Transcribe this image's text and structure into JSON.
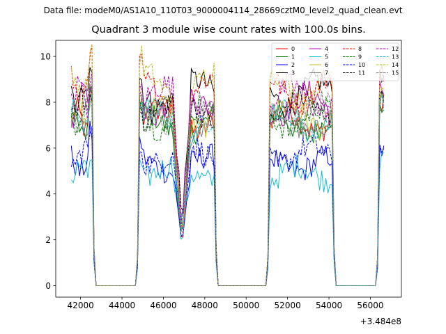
{
  "suptitle": "Data file: modeM0/AS1A10_110T03_9000004114_28669cztM0_level2_quad_clean.evt",
  "chart_data": {
    "type": "line",
    "title": "Quadrant 3 module wise count rates with 100.0s bins.",
    "xlabel": "",
    "ylabel": "",
    "x_offset_label": "+3.484e8",
    "x_offset": 348400000,
    "xlim": [
      40800,
      57500
    ],
    "ylim": [
      -0.5,
      10.7
    ],
    "x_ticks": [
      42000,
      44000,
      46000,
      48000,
      50000,
      52000,
      54000,
      56000
    ],
    "x_tick_labels": [
      "42000",
      "44000",
      "46000",
      "48000",
      "50000",
      "52000",
      "54000",
      "56000"
    ],
    "y_ticks": [
      0,
      2,
      4,
      6,
      8,
      10
    ],
    "y_tick_labels": [
      "0",
      "2",
      "4",
      "6",
      "8",
      "10"
    ],
    "legend_position": "top-right",
    "legend_columns": 4,
    "segments": [
      {
        "start": 41550,
        "end": 42550
      },
      {
        "start": 44850,
        "end": 48450
      },
      {
        "start": 51150,
        "end": 54150
      },
      {
        "start": 56450,
        "end": 56650
      }
    ],
    "zero_gaps": [
      [
        42750,
        44650
      ],
      [
        48650,
        50950
      ],
      [
        54350,
        56250
      ]
    ],
    "dip_center": 46900,
    "series": [
      {
        "name": "0",
        "color": "#ff0000",
        "dash": "solid",
        "level": 7.2
      },
      {
        "name": "1",
        "color": "#008000",
        "dash": "solid",
        "level": 7.0
      },
      {
        "name": "2",
        "color": "#0000ff",
        "dash": "solid",
        "level": 5.3
      },
      {
        "name": "3",
        "color": "#000000",
        "dash": "solid",
        "level": 8.4
      },
      {
        "name": "4",
        "color": "#bf00bf",
        "dash": "solid",
        "level": 7.9
      },
      {
        "name": "5",
        "color": "#17becf",
        "dash": "solid",
        "level": 4.9
      },
      {
        "name": "6",
        "color": "#bcbd22",
        "dash": "solid",
        "level": 7.4
      },
      {
        "name": "7",
        "color": "#7f7f7f",
        "dash": "solid",
        "level": 7.1
      },
      {
        "name": "8",
        "color": "#ff0000",
        "dash": "dashed",
        "level": 8.5
      },
      {
        "name": "9",
        "color": "#008000",
        "dash": "dashed",
        "level": 7.3
      },
      {
        "name": "10",
        "color": "#0000ff",
        "dash": "dashed",
        "level": 5.7
      },
      {
        "name": "11",
        "color": "#000000",
        "dash": "dashed",
        "level": 7.7
      },
      {
        "name": "12",
        "color": "#bf00bf",
        "dash": "dashed",
        "level": 8.2
      },
      {
        "name": "13",
        "color": "#17becf",
        "dash": "dashed",
        "level": 7.2
      },
      {
        "name": "14",
        "color": "#bcbd22",
        "dash": "dashed",
        "level": 8.8
      },
      {
        "name": "15",
        "color": "#7f7f7f",
        "dash": "dashed",
        "level": 7.5
      }
    ]
  }
}
